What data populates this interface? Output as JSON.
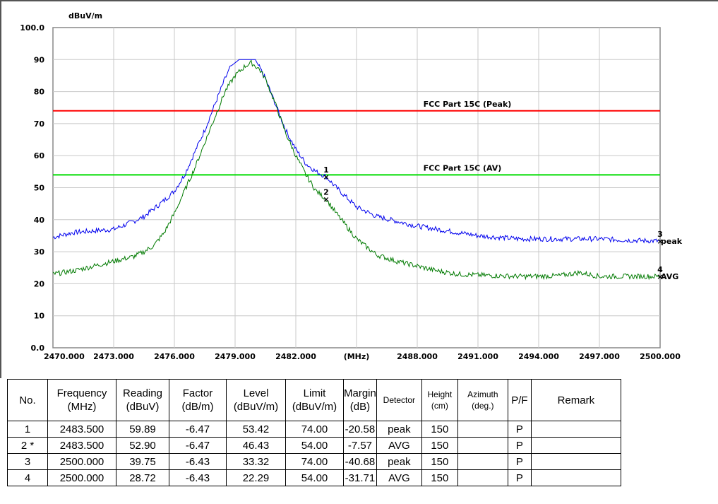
{
  "chart_data": {
    "type": "line",
    "ylabel": "dBuV/m",
    "xlabel": "(MHz)",
    "xlim": [
      2470,
      2500
    ],
    "ylim": [
      0,
      100
    ],
    "y_tick_labels": [
      "0.0",
      "10",
      "20",
      "30",
      "40",
      "50",
      "60",
      "70",
      "80",
      "90",
      "100.0"
    ],
    "x_tick_labels": [
      "2470.000",
      "2473.000",
      "2476.000",
      "2479.000",
      "2482.000",
      "(MHz)",
      "2488.000",
      "2491.000",
      "2494.000",
      "2497.000",
      "2500.000"
    ],
    "grid": true,
    "series": [
      {
        "name": "peak",
        "color": "#0000ee",
        "x": [
          2470,
          2471,
          2472,
          2473,
          2474,
          2474.5,
          2475,
          2475.5,
          2476,
          2476.5,
          2477,
          2477.5,
          2478,
          2478.5,
          2478.8,
          2479.2,
          2479.6,
          2480,
          2480.5,
          2481,
          2481.5,
          2482,
          2482.5,
          2483,
          2483.5,
          2484,
          2485,
          2486,
          2487,
          2488,
          2489,
          2490,
          2491,
          2492,
          2493,
          2494,
          2495,
          2496,
          2497,
          2498,
          2499,
          2500
        ],
        "y": [
          34.5,
          36,
          36.5,
          37,
          39.5,
          41,
          43.5,
          46,
          49,
          54,
          61,
          68,
          76,
          84,
          88,
          90,
          90,
          90,
          84,
          76,
          68,
          62,
          57.5,
          55,
          53.42,
          50,
          44,
          41,
          39.5,
          38,
          37,
          36,
          35,
          34.5,
          34,
          34,
          34,
          34,
          34,
          33.7,
          33.5,
          33.32
        ]
      },
      {
        "name": "AVG",
        "color": "#007a00",
        "x": [
          2470,
          2471,
          2472,
          2473,
          2474,
          2474.5,
          2475,
          2475.5,
          2476,
          2476.5,
          2477,
          2477.5,
          2478,
          2478.5,
          2479,
          2479.5,
          2479.8,
          2480.2,
          2480.5,
          2481,
          2481.5,
          2482,
          2482.5,
          2483,
          2483.5,
          2484,
          2485,
          2486,
          2487,
          2488,
          2489,
          2490,
          2491,
          2492,
          2493,
          2494,
          2495,
          2496,
          2497,
          2498,
          2499,
          2500
        ],
        "y": [
          23,
          24,
          25.5,
          27,
          28.5,
          30,
          32,
          36,
          42,
          49,
          56,
          64,
          72,
          80,
          85,
          88,
          89,
          87,
          84,
          76,
          67,
          60,
          54,
          49,
          46.43,
          42,
          34,
          29,
          27,
          25.5,
          24,
          23,
          22.7,
          22.5,
          22.3,
          22.3,
          22.5,
          23.5,
          22.3,
          22.3,
          22.3,
          22.29
        ]
      }
    ],
    "limits": [
      {
        "name": "FCC Part 15C (Peak)",
        "value": 74,
        "color": "#ff0000"
      },
      {
        "name": "FCC Part 15C (AV)",
        "value": 54,
        "color": "#00dd00"
      }
    ],
    "markers": [
      {
        "label": "1",
        "x": 2483.5,
        "y": 53.42
      },
      {
        "label": "2",
        "x": 2483.5,
        "y": 46.43
      },
      {
        "label": "3",
        "x": 2500,
        "y": 33.32
      },
      {
        "label": "4",
        "x": 2500,
        "y": 22.29
      }
    ]
  },
  "table": {
    "headers": [
      "No.",
      "Frequency\n(MHz)",
      "Reading\n(dBuV)",
      "Factor\n(dB/m)",
      "Level\n(dBuV/m)",
      "Limit\n(dBuV/m)",
      "Margin\n(dB)",
      "Detector",
      "Height\n(cm)",
      "Azimuth\n(deg.)",
      "P/F",
      "Remark"
    ],
    "rows": [
      [
        "1",
        "2483.500",
        "59.89",
        "-6.47",
        "53.42",
        "74.00",
        "-20.58",
        "peak",
        "150",
        "",
        "P",
        ""
      ],
      [
        "2  *",
        "2483.500",
        "52.90",
        "-6.47",
        "46.43",
        "54.00",
        "-7.57",
        "AVG",
        "150",
        "",
        "P",
        ""
      ],
      [
        "3",
        "2500.000",
        "39.75",
        "-6.43",
        "33.32",
        "74.00",
        "-40.68",
        "peak",
        "150",
        "",
        "P",
        ""
      ],
      [
        "4",
        "2500.000",
        "28.72",
        "-6.43",
        "22.29",
        "54.00",
        "-31.71",
        "AVG",
        "150",
        "",
        "P",
        ""
      ]
    ]
  }
}
